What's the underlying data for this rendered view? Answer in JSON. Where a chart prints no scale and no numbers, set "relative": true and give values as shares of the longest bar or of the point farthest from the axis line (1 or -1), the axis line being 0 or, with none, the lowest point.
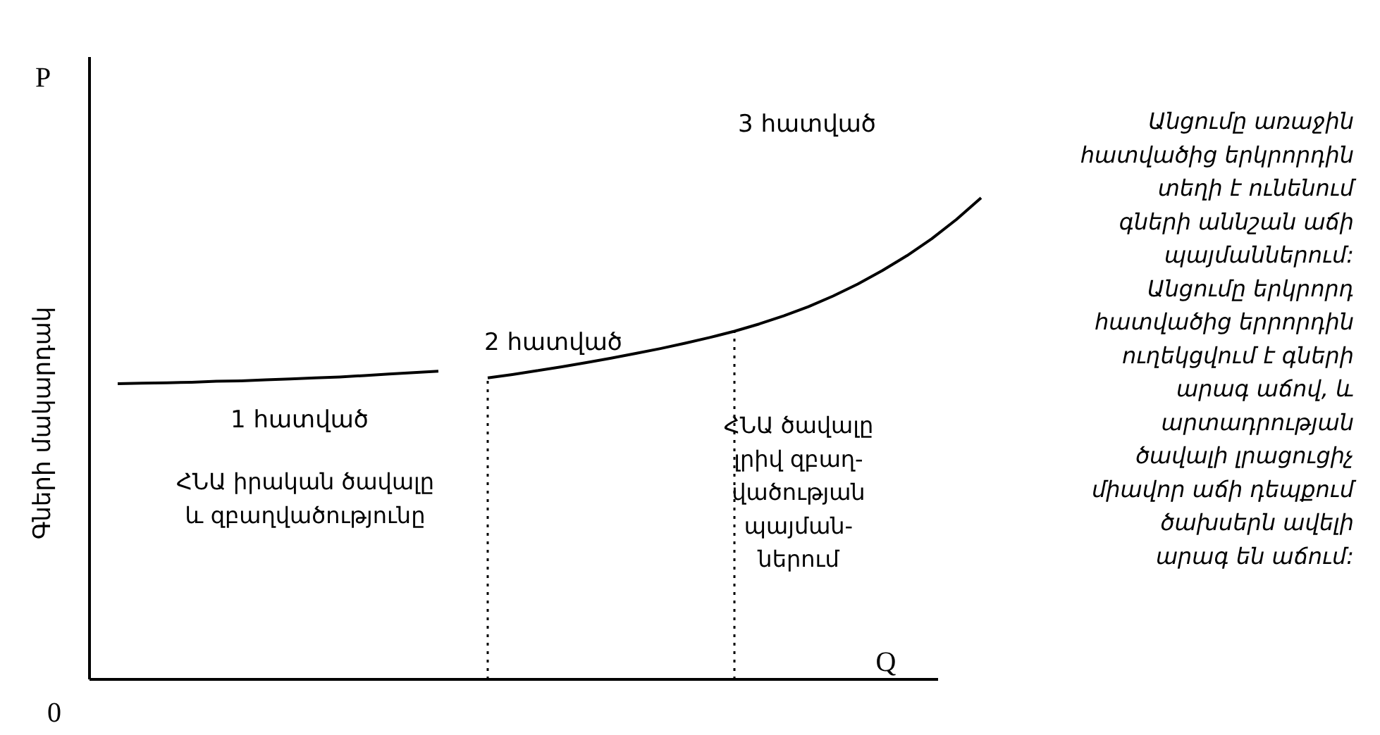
{
  "chart_data": {
    "type": "line",
    "relative": true,
    "xlabel": "Q",
    "ylabel": "Գների մակարդակ",
    "categories": [
      null,
      null,
      null,
      null,
      null,
      null,
      null,
      null,
      null,
      null,
      null,
      null,
      null,
      null,
      null,
      null,
      null,
      null,
      null,
      null,
      null,
      null,
      null,
      null,
      null,
      null,
      null,
      null,
      null,
      null,
      null,
      null,
      null,
      null,
      null,
      null
    ],
    "series": [
      {
        "color": "#000000",
        "values": [
          0.614,
          0.615,
          0.616,
          0.617,
          0.619,
          0.62,
          0.622,
          0.624,
          0.626,
          0.628,
          0.631,
          0.634,
          0.637,
          0.64,
          null,
          null,
          null,
          null,
          null,
          null,
          null,
          null,
          null,
          null,
          null,
          null,
          null,
          null,
          null,
          null,
          null,
          null,
          null,
          null,
          null,
          null
        ]
      },
      {
        "color": "#000000",
        "values": [
          null,
          null,
          null,
          null,
          null,
          null,
          null,
          null,
          null,
          null,
          null,
          null,
          null,
          null,
          null,
          0.626,
          0.633,
          0.641,
          0.649,
          0.658,
          0.667,
          0.677,
          0.687,
          0.698,
          0.71,
          0.723,
          0.738,
          0.755,
          0.774,
          0.796,
          0.821,
          0.849,
          0.88,
          0.915,
          0.955,
          1.0
        ]
      }
    ],
    "annotations": [
      "P",
      "0",
      "1 հատված",
      "2 հատված",
      "3 հատված",
      "ՀՆԱ իրական ծավալը\nև զբաղվածությունը",
      "ՀՆԱ ծավալը\nլրիվ զբաղ-\nվածության\nպայման-\nներում",
      "Անցումը առաջին\nհատվածից երկրորդին\nտեղի է ունենում\nգների աննշան աճի\nպայմաններում:\nԱնցումը երկրորդ\nհատվածից երրորդին\nուղեկցվում է գների\nարագ աճով, և\nարտադրության\nծավալի լրացուցիչ\nմիավոր աճի դեպքում\nծախսերն ավելի\nարագ են աճում:"
    ]
  }
}
